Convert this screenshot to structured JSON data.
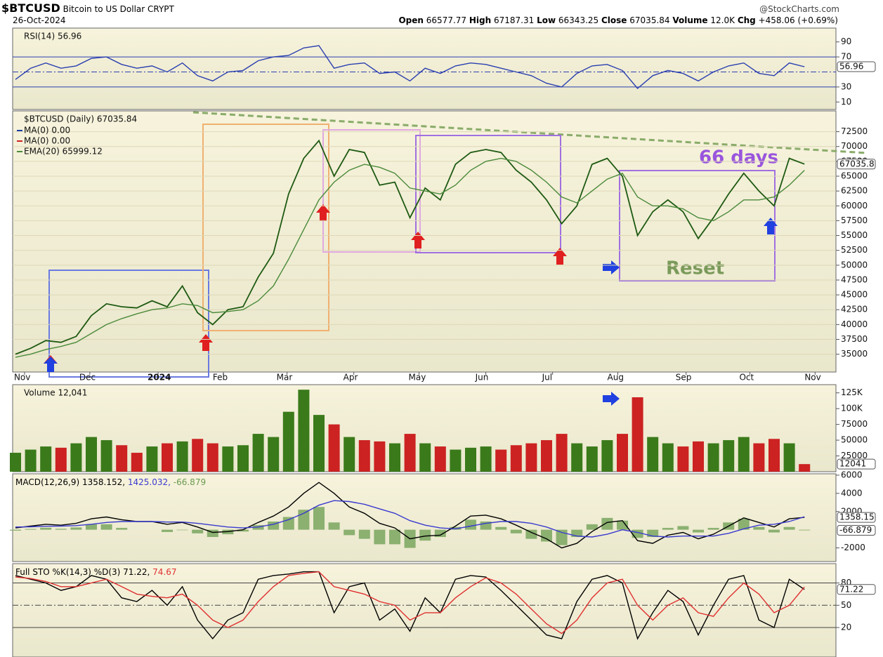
{
  "header": {
    "symbol": "$BTCUSD",
    "name": "Bitcoin to US Dollar",
    "exchange": "CRYPT",
    "date": "26-Oct-2024",
    "source": "@StockCharts.com",
    "quote": [
      {
        "label": "Open",
        "value": "66577.77"
      },
      {
        "label": "High",
        "value": "67187.31"
      },
      {
        "label": "Low",
        "value": "66343.25"
      },
      {
        "label": "Close",
        "value": "67035.84"
      },
      {
        "label": "Volume",
        "value": "12.0K"
      },
      {
        "label": "Chg",
        "value": "+458.06 (+0.69%)"
      }
    ]
  },
  "chart_data": [
    {
      "type": "line",
      "title": "RSI(14) 56.96",
      "categories": [
        null,
        null,
        null,
        null,
        null,
        null,
        null,
        null,
        null,
        null,
        null,
        null,
        null,
        null,
        null,
        null,
        null,
        null,
        null,
        null,
        null,
        null,
        null,
        null,
        null,
        null,
        null,
        null,
        null,
        null,
        null,
        null,
        null,
        null,
        null,
        null,
        null,
        null,
        null,
        null,
        null,
        null,
        null,
        null,
        null,
        null,
        null,
        null,
        null,
        null,
        null,
        null,
        null
      ],
      "series": [
        {
          "color": "#2a3fb0",
          "values": [
            40,
            55,
            62,
            55,
            58,
            68,
            70,
            60,
            55,
            58,
            50,
            62,
            45,
            38,
            50,
            52,
            65,
            70,
            72,
            82,
            85,
            55,
            60,
            62,
            48,
            50,
            38,
            55,
            48,
            58,
            62,
            60,
            55,
            50,
            45,
            35,
            30,
            48,
            58,
            60,
            52,
            28,
            45,
            52,
            48,
            38,
            50,
            58,
            62,
            48,
            45,
            62,
            56.96
          ]
        }
      ],
      "ylim": [
        0,
        100
      ],
      "yticks": [
        10,
        30,
        70,
        90
      ],
      "hlines": [
        30,
        70
      ],
      "dashed_hlines": [
        50
      ],
      "tags": [
        {
          "value": 56.96,
          "label": "56.96"
        }
      ]
    },
    {
      "type": "line",
      "title": "$BTCUSD (Daily) 67035.84",
      "categories": [
        null,
        null,
        null,
        null,
        null,
        null,
        null,
        null,
        null,
        null,
        null,
        null,
        null,
        null,
        null,
        null,
        null,
        null,
        null,
        null,
        null,
        null,
        null,
        null,
        null,
        null,
        null,
        null,
        null,
        null,
        null,
        null,
        null,
        null,
        null,
        null,
        null,
        null,
        null,
        null,
        null,
        null,
        null,
        null,
        null,
        null,
        null,
        null,
        null,
        null,
        null,
        null,
        null
      ],
      "legend_extra": [
        {
          "name": "MA(0) 0.00",
          "color": "#1a3ea8"
        },
        {
          "name": "MA(0) 0.00",
          "color": "#cc2222"
        }
      ],
      "series": [
        {
          "color": "#1e5a12",
          "values": [
            35000,
            36000,
            37300,
            37000,
            38000,
            41500,
            43500,
            43000,
            42800,
            44000,
            43000,
            46500,
            42000,
            40000,
            42500,
            43000,
            48000,
            52000,
            62000,
            68000,
            71000,
            65000,
            69500,
            69000,
            63500,
            64000,
            58000,
            63000,
            61000,
            67000,
            69000,
            69500,
            69000,
            66000,
            64000,
            61000,
            57000,
            60000,
            67000,
            68000,
            65000,
            55000,
            59000,
            61000,
            59000,
            54500,
            58000,
            62000,
            65500,
            62500,
            60000,
            68000,
            67035.84
          ]
        },
        {
          "name": "EMA(20) 65999.12",
          "color": "#4a8a3a",
          "values": [
            34500,
            35000,
            35800,
            36300,
            37000,
            38500,
            40000,
            41000,
            41800,
            42500,
            42800,
            43500,
            43200,
            42000,
            42200,
            42500,
            44000,
            46500,
            51000,
            56000,
            61000,
            64000,
            66000,
            67000,
            66500,
            65500,
            63000,
            62500,
            62000,
            63500,
            66000,
            67500,
            68000,
            67500,
            66000,
            64000,
            61500,
            60500,
            62500,
            64500,
            65500,
            61500,
            60000,
            60000,
            59500,
            58000,
            57500,
            59000,
            61000,
            61000,
            61500,
            63500,
            65999.12
          ]
        }
      ],
      "ylim": [
        32000,
        76000
      ],
      "yticks": [
        35000,
        37500,
        40000,
        42500,
        45000,
        47500,
        50000,
        52500,
        55000,
        57500,
        60000,
        62500,
        65000,
        67500,
        70000,
        72500
      ],
      "grid": true,
      "xticks": [
        {
          "value": 0.6,
          "label": "Nov"
        },
        {
          "value": 4.9,
          "label": "Dec"
        },
        {
          "value": 9.4,
          "label": "2024"
        },
        {
          "value": 13.7,
          "label": "Feb"
        },
        {
          "value": 17.9,
          "label": "Mar"
        },
        {
          "value": 22.3,
          "label": "Apr"
        },
        {
          "value": 26.6,
          "label": "May"
        },
        {
          "value": 31.0,
          "label": "Jun"
        },
        {
          "value": 35.4,
          "label": "Jul"
        },
        {
          "value": 39.7,
          "label": "Aug"
        },
        {
          "value": 44.2,
          "label": "Sep"
        },
        {
          "value": 48.4,
          "label": "Oct"
        },
        {
          "value": 52.7,
          "label": "Nov"
        }
      ],
      "tags": [
        {
          "value": 67035.84,
          "label": "67035.8"
        }
      ],
      "annotations": [
        "66 days",
        "Reset"
      ]
    },
    {
      "type": "bar",
      "title": "Volume 12,041",
      "categories": [
        null,
        null,
        null,
        null,
        null,
        null,
        null,
        null,
        null,
        null,
        null,
        null,
        null,
        null,
        null,
        null,
        null,
        null,
        null,
        null,
        null,
        null,
        null,
        null,
        null,
        null,
        null,
        null,
        null,
        null,
        null,
        null,
        null,
        null,
        null,
        null,
        null,
        null,
        null,
        null,
        null,
        null,
        null,
        null,
        null,
        null,
        null,
        null,
        null,
        null,
        null,
        null,
        null
      ],
      "values": [
        30000,
        35000,
        40000,
        38000,
        45000,
        55000,
        50000,
        42000,
        30000,
        40000,
        45000,
        48000,
        52000,
        45000,
        40000,
        42000,
        60000,
        55000,
        95000,
        130000,
        90000,
        75000,
        55000,
        50000,
        48000,
        45000,
        60000,
        45000,
        40000,
        35000,
        38000,
        40000,
        35000,
        42000,
        45000,
        50000,
        60000,
        45000,
        40000,
        50000,
        60000,
        118000,
        55000,
        45000,
        40000,
        48000,
        45000,
        50000,
        55000,
        45000,
        52000,
        45000,
        12041
      ],
      "up_color": "#3a7a1a",
      "down_color": "#cc2222",
      "ylim": [
        0,
        138000
      ],
      "yticks": [
        25000,
        50000,
        75000,
        {
          "value": 100000,
          "label": "100K"
        },
        {
          "value": 125000,
          "label": "125K"
        }
      ],
      "tags": [
        {
          "value": 12041,
          "label": "12041"
        }
      ]
    },
    {
      "type": "line",
      "categories": [
        null,
        null,
        null,
        null,
        null,
        null,
        null,
        null,
        null,
        null,
        null,
        null,
        null,
        null,
        null,
        null,
        null,
        null,
        null,
        null,
        null,
        null,
        null,
        null,
        null,
        null,
        null,
        null,
        null,
        null,
        null,
        null,
        null,
        null,
        null,
        null,
        null,
        null,
        null,
        null,
        null,
        null,
        null,
        null,
        null,
        null,
        null,
        null,
        null,
        null,
        null,
        null,
        null
      ],
      "series": [
        {
          "name": "MACD(12,26,9) 1358.152,",
          "color": "#000000",
          "values": [
            200,
            400,
            600,
            500,
            700,
            1200,
            1400,
            1100,
            900,
            900,
            600,
            800,
            300,
            -300,
            -200,
            0,
            800,
            1500,
            2500,
            4000,
            5200,
            4000,
            2500,
            1800,
            700,
            200,
            -1000,
            -700,
            -600,
            400,
            1500,
            1600,
            1200,
            500,
            -300,
            -1000,
            -2000,
            -1500,
            -200,
            800,
            1000,
            -1200,
            -1500,
            -600,
            -300,
            -1000,
            -500,
            400,
            1300,
            800,
            300,
            1200,
            1358.152
          ]
        },
        {
          "name": "1425.032,",
          "color": "#3a3ad0",
          "values": [
            300,
            320,
            380,
            400,
            450,
            600,
            800,
            900,
            900,
            900,
            850,
            850,
            700,
            500,
            300,
            200,
            300,
            600,
            1100,
            1800,
            2700,
            3200,
            3100,
            2800,
            2300,
            1800,
            1000,
            500,
            200,
            100,
            400,
            700,
            900,
            900,
            700,
            300,
            -300,
            -700,
            -800,
            -500,
            0,
            -300,
            -700,
            -800,
            -700,
            -700,
            -700,
            -400,
            100,
            500,
            600,
            900,
            1425.032
          ]
        },
        {
          "name": "-66.879",
          "color": "#8bb070",
          "kind": "bar",
          "values": [
            -100,
            80,
            220,
            100,
            250,
            600,
            600,
            200,
            0,
            0,
            -250,
            -50,
            -400,
            -800,
            -500,
            -200,
            500,
            900,
            1400,
            2200,
            2500,
            800,
            -600,
            -1000,
            -1600,
            -1600,
            -2000,
            -1200,
            -800,
            300,
            1100,
            900,
            300,
            -400,
            -1000,
            -1300,
            -1700,
            -800,
            600,
            1300,
            1000,
            -900,
            -800,
            200,
            400,
            -300,
            200,
            800,
            1200,
            300,
            -300,
            300,
            -66.879
          ]
        }
      ],
      "ylim": [
        -3500,
        6150
      ],
      "yticks": [
        -2000,
        2000,
        4000,
        6000
      ],
      "tags": [
        {
          "value": 1358.152,
          "label": "1358.15"
        },
        {
          "value": -66.879,
          "label": "-66.879"
        }
      ]
    },
    {
      "type": "line",
      "categories": [
        null,
        null,
        null,
        null,
        null,
        null,
        null,
        null,
        null,
        null,
        null,
        null,
        null,
        null,
        null,
        null,
        null,
        null,
        null,
        null,
        null,
        null,
        null,
        null,
        null,
        null,
        null,
        null,
        null,
        null,
        null,
        null,
        null,
        null,
        null,
        null,
        null,
        null,
        null,
        null,
        null,
        null,
        null,
        null,
        null,
        null,
        null,
        null,
        null,
        null,
        null,
        null,
        null
      ],
      "series": [
        {
          "name": "Full STO %K(14,3) %D(3) 71.22,",
          "color": "#000000",
          "values": [
            90,
            85,
            80,
            70,
            75,
            90,
            85,
            60,
            55,
            70,
            50,
            75,
            30,
            5,
            30,
            40,
            85,
            90,
            92,
            95,
            95,
            40,
            75,
            80,
            30,
            45,
            15,
            60,
            40,
            85,
            90,
            88,
            70,
            50,
            30,
            10,
            5,
            55,
            85,
            90,
            80,
            5,
            40,
            70,
            55,
            10,
            50,
            85,
            90,
            30,
            20,
            85,
            71.22
          ]
        },
        {
          "name": "74.67",
          "color": "#e03030",
          "values": [
            88,
            86,
            82,
            75,
            75,
            80,
            85,
            75,
            65,
            62,
            60,
            65,
            50,
            30,
            20,
            30,
            55,
            75,
            90,
            93,
            95,
            75,
            70,
            65,
            55,
            50,
            30,
            40,
            40,
            60,
            75,
            87,
            80,
            65,
            45,
            25,
            12,
            30,
            60,
            80,
            85,
            50,
            30,
            50,
            60,
            40,
            35,
            60,
            80,
            65,
            40,
            50,
            74.67
          ]
        }
      ],
      "ylim": [
        -14,
        106
      ],
      "yticks": [
        20,
        50,
        80
      ],
      "hlines": [
        20,
        80
      ],
      "dashed_hlines": [
        50
      ],
      "tags": [
        {
          "value": 71.22,
          "label": "71.22"
        }
      ]
    }
  ]
}
